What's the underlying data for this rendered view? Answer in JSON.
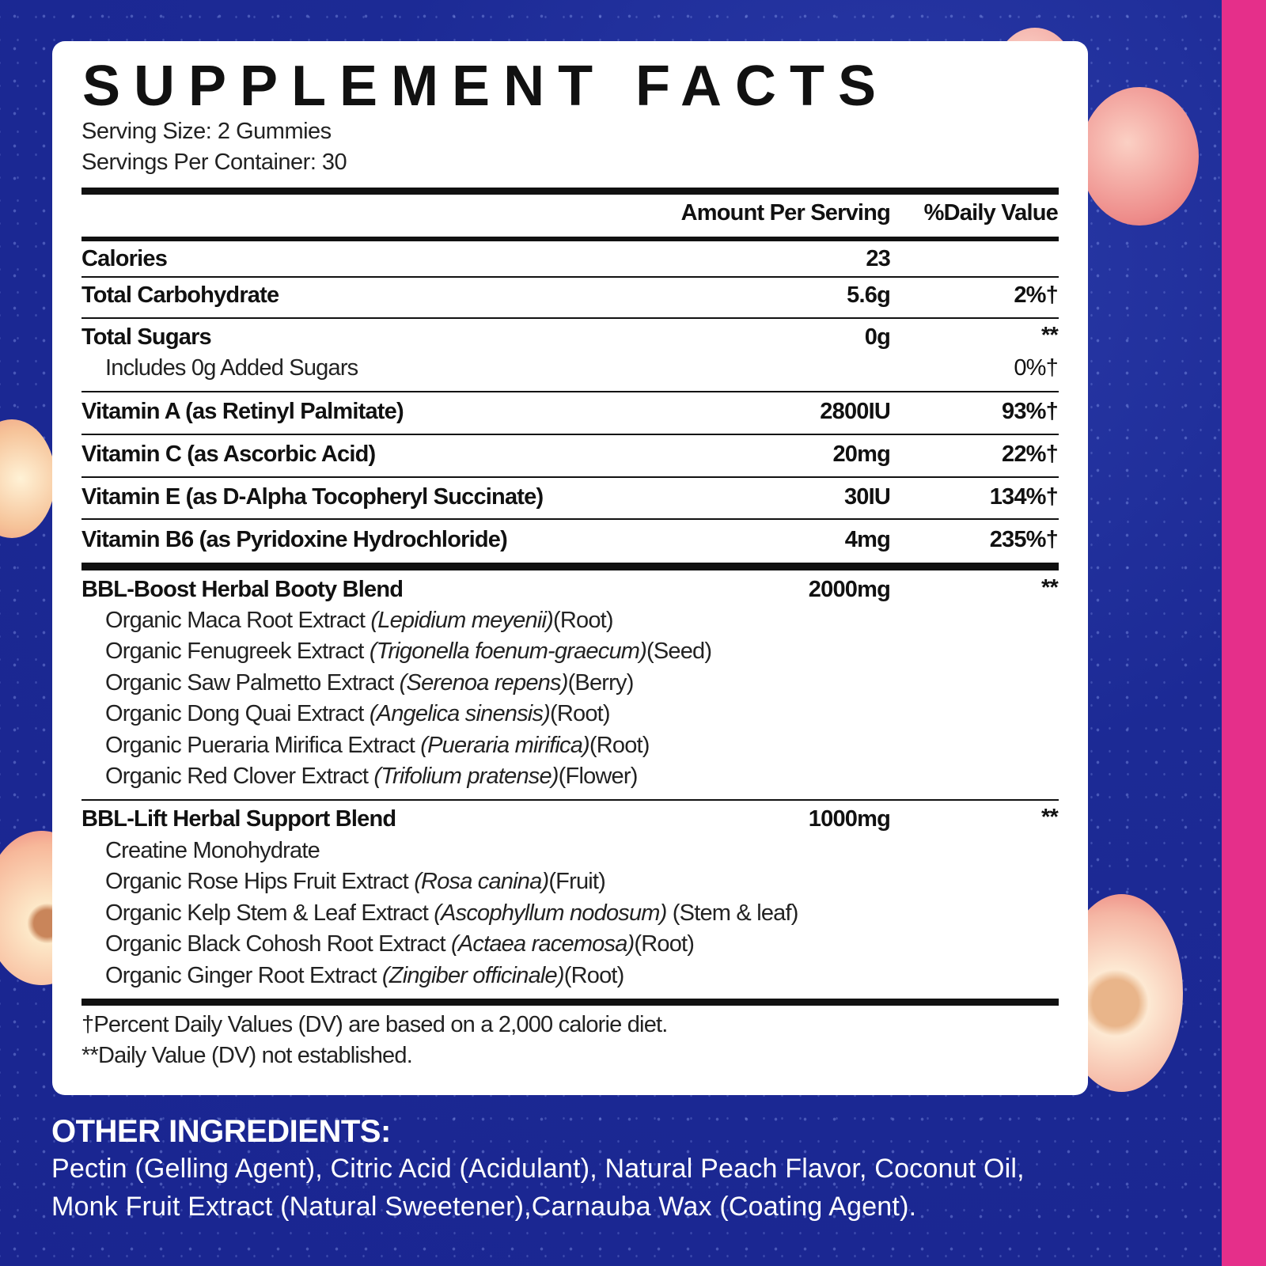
{
  "title": "SUPPLEMENT FACTS",
  "serving_size": "Serving Size: 2 Gummies",
  "servings_per_container": "Servings Per Container: 30",
  "header": {
    "amount": "Amount Per Serving",
    "dv": "%Daily Value"
  },
  "rows": [
    {
      "label": "Calories",
      "amount": "23",
      "dv": ""
    },
    {
      "label": "Total Carbohydrate",
      "amount": "5.6g",
      "dv": "2%†"
    },
    {
      "label": "Total Sugars",
      "amount": "0g",
      "dv": "**"
    },
    {
      "label": "Includes 0g Added Sugars",
      "amount": "",
      "dv": "0%†"
    },
    {
      "label": "Vitamin A (as Retinyl Palmitate)",
      "amount": "2800IU",
      "dv": "93%†"
    },
    {
      "label": "Vitamin C (as Ascorbic Acid)",
      "amount": "20mg",
      "dv": "22%†"
    },
    {
      "label": "Vitamin E (as D-Alpha Tocopheryl Succinate)",
      "amount": "30IU",
      "dv": "134%†"
    },
    {
      "label": "Vitamin B6 (as Pyridoxine Hydrochloride)",
      "amount": "4mg",
      "dv": "235%†"
    }
  ],
  "blends": [
    {
      "name": "BBL-Boost Herbal Booty Blend",
      "amount": "2000mg",
      "dv": "**",
      "items": [
        {
          "name": "Organic Maca Root Extract ",
          "latin": "(Lepidium meyenii)",
          "part": "(Root)"
        },
        {
          "name": "Organic Fenugreek Extract ",
          "latin": "(Trigonella foenum-graecum)",
          "part": "(Seed)"
        },
        {
          "name": "Organic Saw Palmetto Extract ",
          "latin": "(Serenoa repens)",
          "part": "(Berry)"
        },
        {
          "name": "Organic Dong Quai Extract ",
          "latin": "(Angelica sinensis)",
          "part": "(Root)"
        },
        {
          "name": "Organic Pueraria Mirifica Extract ",
          "latin": "(Pueraria mirifica)",
          "part": "(Root)"
        },
        {
          "name": "Organic Red Clover Extract ",
          "latin": "(Trifolium pratense)",
          "part": "(Flower)"
        }
      ]
    },
    {
      "name": "BBL-Lift Herbal Support Blend",
      "amount": "1000mg",
      "dv": "**",
      "items": [
        {
          "name": "Creatine Monohydrate",
          "latin": "",
          "part": ""
        },
        {
          "name": "Organic Rose Hips Fruit Extract ",
          "latin": "(Rosa canina)",
          "part": "(Fruit)"
        },
        {
          "name": "Organic Kelp Stem & Leaf Extract ",
          "latin": "(Ascophyllum nodosum)",
          "part": " (Stem & leaf)"
        },
        {
          "name": "Organic Black Cohosh Root Extract ",
          "latin": "(Actaea racemosa)",
          "part": "(Root)"
        },
        {
          "name": "Organic Ginger Root Extract ",
          "latin": "(Zingiber officinale)",
          "part": "(Root)"
        }
      ]
    }
  ],
  "footnotes": [
    "†Percent Daily Values (DV) are based on a 2,000 calorie diet.",
    "**Daily Value (DV) not established."
  ],
  "other_ingredients": {
    "heading": "OTHER INGREDIENTS:",
    "lines": [
      "Pectin (Gelling Agent), Citric Acid (Acidulant), Natural Peach Flavor, Coconut Oil,",
      "Monk Fruit Extract (Natural Sweetener),Carnauba Wax (Coating Agent)."
    ]
  },
  "colors": {
    "background": "#1c2a95",
    "stripe": "#e52f8a",
    "card": "#ffffff",
    "text": "#111111"
  }
}
